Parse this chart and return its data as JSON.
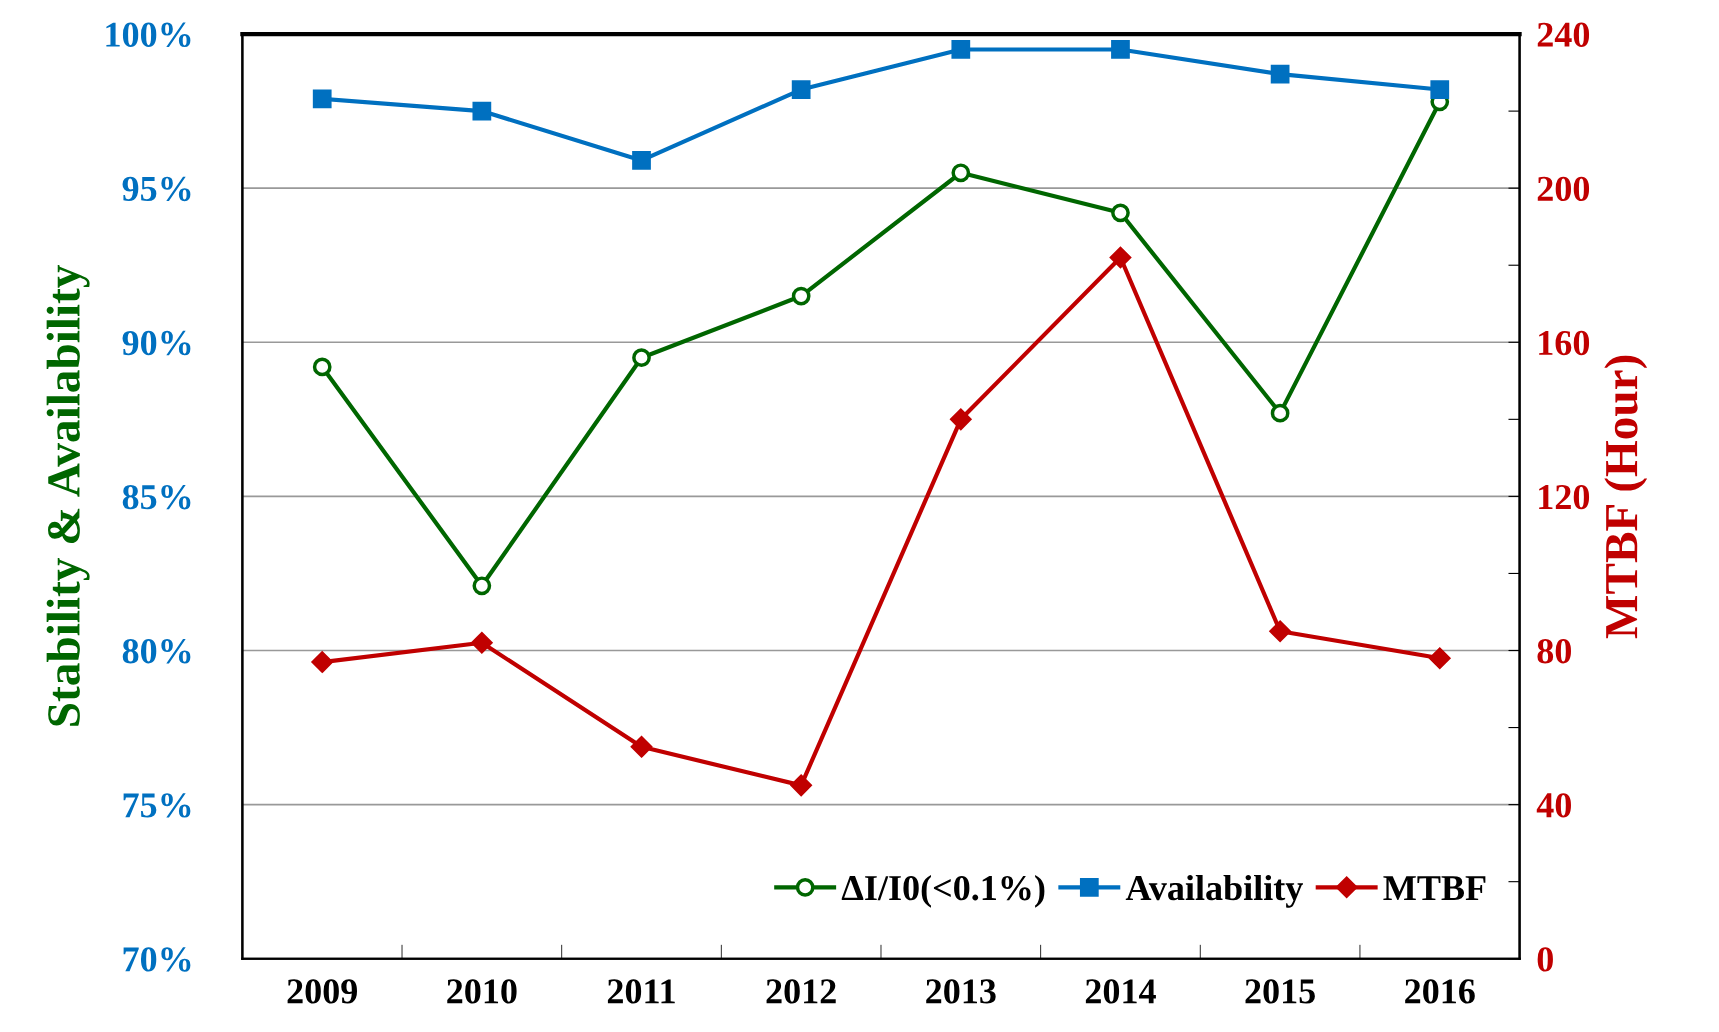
{
  "chart_data": {
    "type": "line",
    "ylabel": "Stability & Availability",
    "y2label": "MTBF (Hour)",
    "categories": [
      "2009",
      "2010",
      "2011",
      "2012",
      "2013",
      "2014",
      "2015",
      "2016"
    ],
    "series": [
      {
        "name": "ΔI/I0(<0.1%)",
        "color": "#006600",
        "marker": "circle",
        "values": [
          89.2,
          82.1,
          89.5,
          91.5,
          95.5,
          94.2,
          87.7,
          97.8
        ]
      },
      {
        "name": "Availability",
        "color": "#0070c0",
        "marker": "square",
        "values": [
          97.9,
          97.5,
          95.9,
          98.2,
          99.5,
          99.5,
          98.7,
          98.2
        ]
      },
      {
        "name": "MTBF",
        "color": "#c00000",
        "marker": "diamond",
        "axis": "y2",
        "values": [
          77,
          82,
          55,
          45,
          140,
          182,
          85,
          78
        ]
      }
    ],
    "ylim": [
      70,
      100
    ],
    "yticks": [
      {
        "value": 70,
        "label": "70%"
      },
      {
        "value": 75,
        "label": "75%"
      },
      {
        "value": 80,
        "label": "80%"
      },
      {
        "value": 85,
        "label": "85%"
      },
      {
        "value": 90,
        "label": "90%"
      },
      {
        "value": 95,
        "label": "95%"
      },
      {
        "value": 100,
        "label": "100%"
      }
    ],
    "y2lim": [
      0,
      240
    ],
    "y2ticks": [
      0,
      {
        "value": 20,
        "label": null
      },
      40,
      {
        "value": 60,
        "label": null
      },
      80,
      {
        "value": 100,
        "label": null
      },
      120,
      {
        "value": 140,
        "label": null
      },
      160,
      {
        "value": 180,
        "label": null
      },
      200,
      {
        "value": 220,
        "label": null
      },
      240
    ],
    "grid": "y",
    "legend": "bottom right",
    "line_style": "solid"
  }
}
